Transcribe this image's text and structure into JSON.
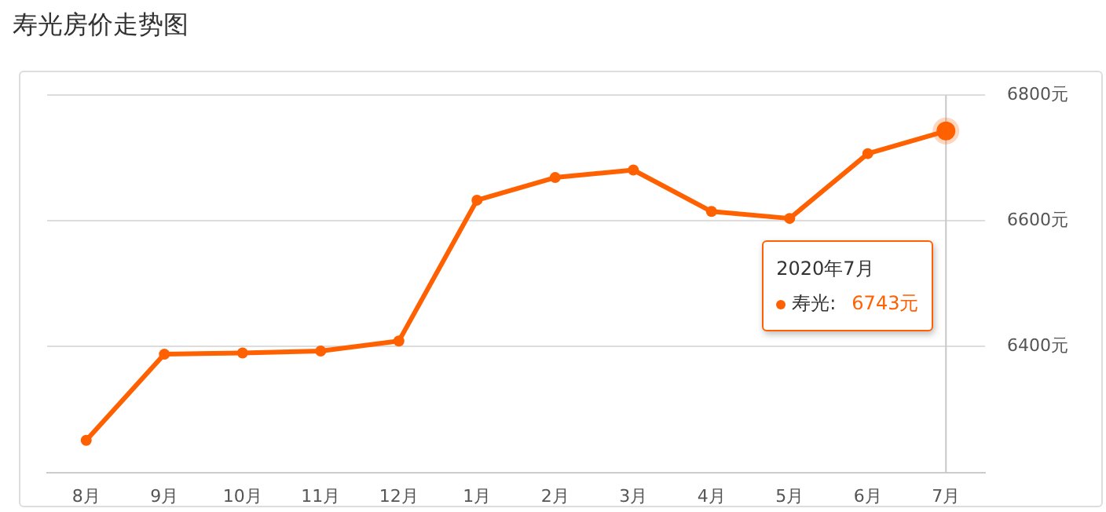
{
  "chart_data": {
    "type": "line",
    "title": "寿光房价走势图",
    "categories": [
      "8月",
      "9月",
      "10月",
      "11月",
      "12月",
      "1月",
      "2月",
      "3月",
      "4月",
      "5月",
      "6月",
      "7月"
    ],
    "series": [
      {
        "name": "寿光",
        "color": "#ff6000",
        "values": [
          6251,
          6388,
          6390,
          6393,
          6409,
          6633,
          6669,
          6681,
          6615,
          6604,
          6707,
          6743
        ]
      }
    ],
    "ylim": [
      6200,
      6800
    ],
    "yticks": [
      {
        "value": 6400,
        "label": "6400元"
      },
      {
        "value": 6600,
        "label": "6600元"
      },
      {
        "value": 6800,
        "label": "6800元"
      }
    ],
    "grid": "y",
    "marker": "circle",
    "line_style": "solid",
    "legend": "right",
    "ref_lines": [
      {
        "axis": "x",
        "value": "7月",
        "color": "#c8c8c8"
      }
    ],
    "annotations": [
      "2020年7月",
      ":",
      "6743元"
    ]
  }
}
